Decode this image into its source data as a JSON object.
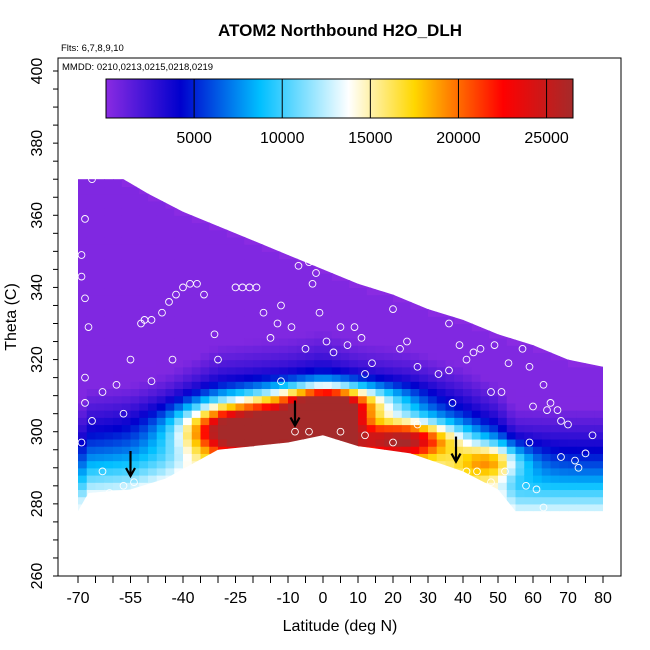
{
  "chart_data": {
    "type": "heatmap",
    "title": "ATOM2 Northbound H2O_DLH",
    "annotations": [
      "Flts: 6,7,8,9,10",
      "MMDD: 0210,0213,0215,0218,0219"
    ],
    "xlabel": "Latitude (deg N)",
    "ylabel": "Theta (C)",
    "xlim": [
      -70,
      80
    ],
    "ylim": [
      260,
      400
    ],
    "x_ticks": [
      -70,
      -55,
      -40,
      -25,
      -10,
      0,
      10,
      20,
      30,
      40,
      50,
      60,
      70,
      80
    ],
    "x_tick_labels": [
      "-70",
      "-55",
      "-40",
      "-25",
      "-10",
      "0",
      "10",
      "20",
      "30",
      "40",
      "50",
      "60",
      "70",
      "80"
    ],
    "y_ticks": [
      260,
      280,
      300,
      320,
      340,
      360,
      380,
      400
    ],
    "y_tick_labels": [
      "260",
      "280",
      "300",
      "320",
      "340",
      "360",
      "380",
      "400"
    ],
    "colorbar": {
      "range": [
        0,
        26500
      ],
      "ticks": [
        5000,
        10000,
        15000,
        20000,
        25000
      ],
      "tick_labels": [
        "5000",
        "10000",
        "15000",
        "20000",
        "25000"
      ],
      "colors": [
        "#8a2be2",
        "#0000cd",
        "#00bfff",
        "#ffffff",
        "#ffd700",
        "#ff0000",
        "#a52a2a"
      ]
    },
    "upper_boundary": [
      [
        -70,
        370
      ],
      [
        -57,
        370
      ],
      [
        -50,
        366
      ],
      [
        -40,
        361
      ],
      [
        -30,
        357
      ],
      [
        -20,
        353
      ],
      [
        -10,
        349
      ],
      [
        0,
        345
      ],
      [
        10,
        341
      ],
      [
        20,
        338
      ],
      [
        30,
        334
      ],
      [
        40,
        331
      ],
      [
        50,
        327
      ],
      [
        60,
        324
      ],
      [
        70,
        320
      ],
      [
        80,
        318
      ]
    ],
    "lower_boundary": [
      [
        -70,
        278
      ],
      [
        -67,
        283
      ],
      [
        -55,
        284
      ],
      [
        -45,
        287
      ],
      [
        -30,
        295
      ],
      [
        -10,
        297
      ],
      [
        0,
        299
      ],
      [
        10,
        296
      ],
      [
        25,
        294
      ],
      [
        40,
        289
      ],
      [
        50,
        284
      ],
      [
        55,
        278
      ],
      [
        80,
        278
      ]
    ],
    "peaks": [
      {
        "lat": -22,
        "theta": 301,
        "value": 22000,
        "sx": 17,
        "st": 7
      },
      {
        "lat": 1,
        "theta": 302,
        "value": 24500,
        "sx": 9,
        "st": 7
      },
      {
        "lat": 2,
        "theta": 308,
        "value": 15500,
        "sx": 18,
        "st": 5
      },
      {
        "lat": 23,
        "theta": 298,
        "value": 15500,
        "sx": 15,
        "st": 5
      },
      {
        "lat": 48,
        "theta": 292,
        "value": 9500,
        "sx": 10,
        "st": 5
      }
    ],
    "samples": [
      [
        -66,
        370
      ],
      [
        -68,
        359
      ],
      [
        -69,
        349
      ],
      [
        -69,
        343
      ],
      [
        -68,
        337
      ],
      [
        -67,
        329
      ],
      [
        -68,
        315
      ],
      [
        -68,
        308
      ],
      [
        -66,
        303
      ],
      [
        -69,
        297
      ],
      [
        -67,
        281
      ],
      [
        -63,
        289
      ],
      [
        -61,
        283
      ],
      [
        -57,
        285
      ],
      [
        -54,
        286
      ],
      [
        -63,
        311
      ],
      [
        -59,
        313
      ],
      [
        -57,
        305
      ],
      [
        -55,
        320
      ],
      [
        -52,
        330
      ],
      [
        -51,
        331
      ],
      [
        -49,
        331
      ],
      [
        -49,
        314
      ],
      [
        -46,
        333
      ],
      [
        -44,
        336
      ],
      [
        -42,
        338
      ],
      [
        -40,
        340
      ],
      [
        -38,
        341
      ],
      [
        -36,
        341
      ],
      [
        -43,
        320
      ],
      [
        -34,
        338
      ],
      [
        -31,
        327
      ],
      [
        -30,
        320
      ],
      [
        -25,
        340
      ],
      [
        -23,
        340
      ],
      [
        -21,
        340
      ],
      [
        -19,
        340
      ],
      [
        -17,
        333
      ],
      [
        -15,
        326
      ],
      [
        -13,
        330
      ],
      [
        -12,
        335
      ],
      [
        -9,
        329
      ],
      [
        -7,
        346
      ],
      [
        -4,
        347
      ],
      [
        -1,
        333
      ],
      [
        -3,
        341
      ],
      [
        -2,
        344
      ],
      [
        1,
        325
      ],
      [
        3,
        322
      ],
      [
        5,
        329
      ],
      [
        7,
        324
      ],
      [
        9,
        329
      ],
      [
        11,
        326
      ],
      [
        12,
        316
      ],
      [
        14,
        319
      ],
      [
        15,
        344
      ],
      [
        17,
        344
      ],
      [
        19,
        343
      ],
      [
        23,
        347
      ],
      [
        20,
        334
      ],
      [
        22,
        323
      ],
      [
        24,
        325
      ],
      [
        27,
        318
      ],
      [
        27,
        302
      ],
      [
        -12,
        314
      ],
      [
        -8,
        300
      ],
      [
        -5,
        323
      ],
      [
        -4,
        300
      ],
      [
        5,
        300
      ],
      [
        12,
        299
      ],
      [
        20,
        297
      ],
      [
        31,
        337
      ],
      [
        33,
        316
      ],
      [
        36,
        317
      ],
      [
        37,
        308
      ],
      [
        36,
        330
      ],
      [
        39,
        324
      ],
      [
        41,
        320
      ],
      [
        43,
        322
      ],
      [
        45,
        323
      ],
      [
        46,
        330
      ],
      [
        48,
        311
      ],
      [
        49,
        324
      ],
      [
        51,
        311
      ],
      [
        53,
        319
      ],
      [
        57,
        323
      ],
      [
        59,
        318
      ],
      [
        59,
        297
      ],
      [
        60,
        307
      ],
      [
        63,
        313
      ],
      [
        64,
        306
      ],
      [
        65,
        308
      ],
      [
        67,
        306
      ],
      [
        68,
        303
      ],
      [
        68,
        293
      ],
      [
        70,
        302
      ],
      [
        72,
        292
      ],
      [
        73,
        290
      ],
      [
        75,
        294
      ],
      [
        77,
        299
      ],
      [
        79,
        322
      ],
      [
        80,
        322
      ],
      [
        61,
        284
      ],
      [
        63,
        279
      ],
      [
        58,
        285
      ],
      [
        52,
        289
      ],
      [
        44,
        289
      ],
      [
        48,
        286
      ],
      [
        41,
        289
      ],
      [
        33,
        287
      ]
    ],
    "arrows": [
      {
        "lat": -55,
        "theta": 288
      },
      {
        "lat": -8,
        "theta": 302
      },
      {
        "lat": 38,
        "theta": 292
      }
    ]
  }
}
